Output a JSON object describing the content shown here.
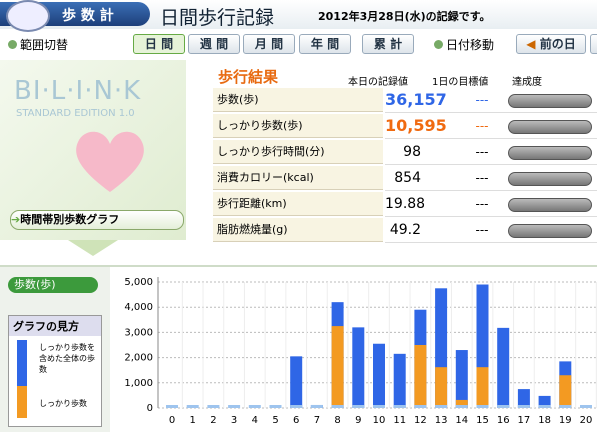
{
  "header": {
    "app_tab": "歩 数 計",
    "title": "日間歩行記録",
    "date_note": "2012年3月28日(水)の記録です。"
  },
  "toolbar": {
    "range_label": "範囲切替",
    "range_buttons": [
      "日 間",
      "週 間",
      "月 間",
      "年 間",
      "累 計"
    ],
    "date_move_label": "日付移動",
    "prev_button": "前の日"
  },
  "sidebar": {
    "logo": "BI·L·I·N·K",
    "edition": "STANDARD EDITION 1.0",
    "graph_button": "時間帯別歩数グラフ"
  },
  "results": {
    "title": "歩行結果",
    "columns": [
      "本日の記録値",
      "1日の目標値",
      "達成度"
    ],
    "rows": [
      [
        "歩数(歩)",
        "36,157",
        "---"
      ],
      [
        "しっかり歩数(歩)",
        "10,595",
        "---"
      ],
      [
        "しっかり歩行時間(分)",
        "98",
        "---"
      ],
      [
        "消費カロリー(kcal)",
        "854",
        "---"
      ],
      [
        "歩行距離(km)",
        "19.88",
        "---"
      ],
      [
        "脂肪燃焼量(g)",
        "49.2",
        "---"
      ]
    ]
  },
  "chart_data": {
    "type": "bar",
    "y_axis_label": "歩数(歩)",
    "legend_title": "グラフの見方",
    "categories": [
      "0",
      "1",
      "2",
      "3",
      "4",
      "5",
      "6",
      "7",
      "8",
      "9",
      "10",
      "11",
      "12",
      "13",
      "14",
      "15",
      "16",
      "17",
      "18",
      "19",
      "20"
    ],
    "series": [
      {
        "name": "しっかり歩数を含めた全体の歩数",
        "color": "#2f66e6",
        "values": [
          0,
          0,
          0,
          0,
          0,
          0,
          2050,
          120,
          4200,
          3200,
          2550,
          2150,
          3900,
          4750,
          2300,
          4900,
          3180,
          750,
          480,
          1850,
          0
        ]
      },
      {
        "name": "しっかり歩数",
        "color": "#f39a22",
        "values": [
          0,
          0,
          0,
          0,
          0,
          0,
          0,
          0,
          3250,
          0,
          0,
          0,
          2500,
          1620,
          320,
          1620,
          0,
          0,
          0,
          1300,
          0
        ]
      }
    ],
    "ylim": [
      0,
      5000
    ],
    "yticks": [
      0,
      {
        "value": 1000,
        "label": "1,000"
      },
      {
        "value": 2000,
        "label": "2,000"
      },
      {
        "value": 3000,
        "label": "3,000"
      },
      {
        "value": 4000,
        "label": "4,000"
      },
      {
        "value": 5000,
        "label": "5,000"
      }
    ],
    "grid": true
  }
}
